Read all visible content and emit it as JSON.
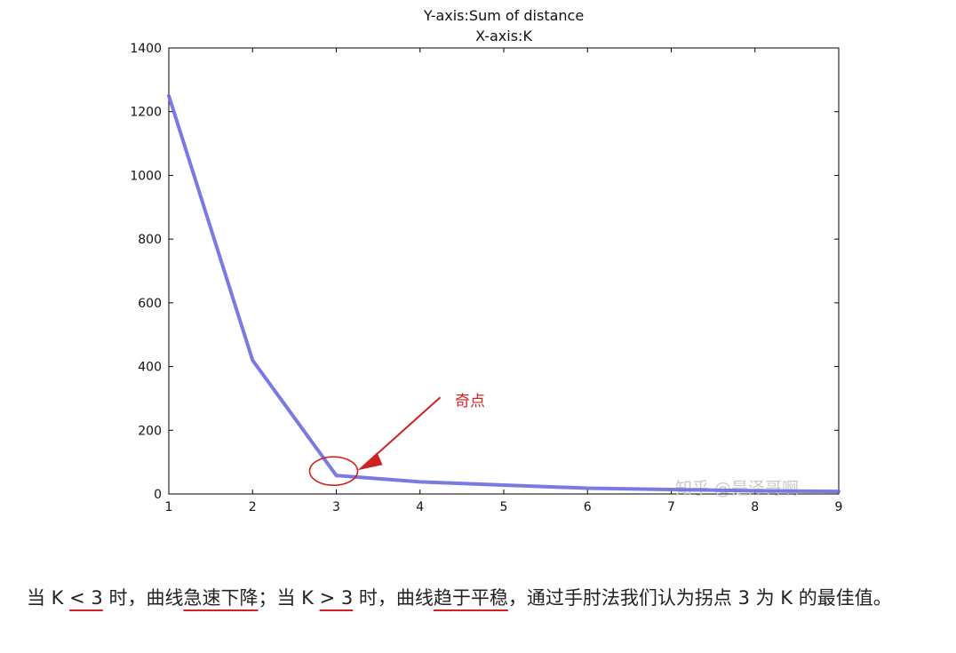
{
  "chart_data": {
    "type": "line",
    "title": "Y-axis:Sum of distance",
    "subtitle": "X-axis:K",
    "xlabel": "",
    "ylabel": "",
    "x": [
      1,
      2,
      3,
      4,
      5,
      6,
      7,
      8,
      9
    ],
    "series": [
      {
        "values": [
          1250,
          420,
          58,
          38,
          28,
          18,
          14,
          10,
          8
        ]
      }
    ],
    "xlim": [
      1,
      9
    ],
    "ylim": [
      0,
      1400
    ],
    "xticks": [
      "1",
      "2",
      "3",
      "4",
      "5",
      "6",
      "7",
      "8",
      "9"
    ],
    "yticks": [
      "0",
      "200",
      "400",
      "600",
      "800",
      "1000",
      "1200",
      "1400"
    ],
    "grid": false,
    "line_color": "#6b6bdf",
    "annotation": {
      "text": "奇点",
      "point_x": 3,
      "point_y": 58,
      "color": "#cc2222"
    },
    "watermark": "知乎 @是泽哥啊"
  },
  "caption": {
    "segments": [
      "当 K ",
      "< 3",
      " 时，曲线",
      "急速下降",
      "；当 K ",
      "> 3",
      " 时，曲线",
      "趋于平稳",
      "，通过手肘法我们认为拐点 3 为 K 的最佳值。"
    ]
  }
}
